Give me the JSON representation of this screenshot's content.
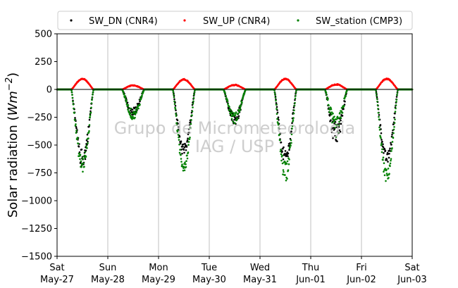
{
  "chart_data": {
    "type": "scatter",
    "ylabel_parts": [
      "Solar radiation (",
      "Wm",
      "−2",
      ")"
    ],
    "ylim": [
      -1500,
      500
    ],
    "yticks": [
      500,
      250,
      0,
      -250,
      -500,
      -750,
      -1000,
      -1250,
      -1500
    ],
    "ytick_labels": [
      "500",
      "250",
      "0",
      "−250",
      "−500",
      "−750",
      "−1000",
      "−1250",
      "−1500"
    ],
    "xlim_days": [
      0,
      7
    ],
    "xticks": [
      {
        "day": 0,
        "line1": "Sat",
        "line2": "May-27"
      },
      {
        "day": 1,
        "line1": "Sun",
        "line2": "May-28"
      },
      {
        "day": 2,
        "line1": "Mon",
        "line2": "May-29"
      },
      {
        "day": 3,
        "line1": "Tue",
        "line2": "May-30"
      },
      {
        "day": 4,
        "line1": "Wed",
        "line2": "May-31"
      },
      {
        "day": 5,
        "line1": "Thu",
        "line2": "Jun-01"
      },
      {
        "day": 6,
        "line1": "Fri",
        "line2": "Jun-02"
      },
      {
        "day": 7,
        "line1": "Sat",
        "line2": "Jun-03"
      }
    ],
    "grid": "vertical",
    "zero_line": true,
    "legend_position": "top",
    "watermark": [
      "Grupo de Micrometeorologia",
      "IAG / USP"
    ],
    "series": [
      {
        "name": "SW_DN (CNR4)",
        "color": "#000000",
        "peaks": [
          -700,
          -250,
          -600,
          -320,
          -680,
          -500,
          -670
        ],
        "noise": [
          0.22,
          0.35,
          0.18,
          0.3,
          0.2,
          0.4,
          0.15
        ]
      },
      {
        "name": "SW_UP (CNR4)",
        "color": "#ff0000",
        "peaks": [
          100,
          40,
          95,
          45,
          100,
          50,
          100
        ],
        "noise": [
          0.1,
          0.2,
          0.1,
          0.2,
          0.1,
          0.2,
          0.1
        ]
      },
      {
        "name": "SW_station (CMP3)",
        "color": "#008000",
        "peaks": [
          -750,
          -270,
          -740,
          -300,
          -830,
          -420,
          -840
        ],
        "noise": [
          0.2,
          0.3,
          0.15,
          0.3,
          0.2,
          0.4,
          0.15
        ]
      }
    ],
    "day_window": {
      "sunrise": 0.28,
      "sunset": 0.72
    }
  }
}
